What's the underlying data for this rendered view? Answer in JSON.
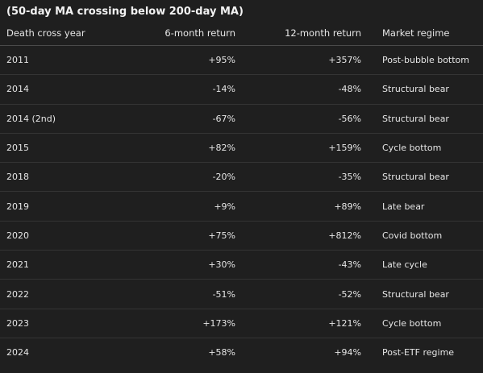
{
  "caption": "(50-day MA crossing below 200-day MA)",
  "table": {
    "headers": {
      "year": "Death cross year",
      "six_month": "6-month return",
      "twelve_month": "12-month return",
      "regime": "Market regime"
    },
    "rows": [
      {
        "year": "2011",
        "six_month": "+95%",
        "twelve_month": "+357%",
        "regime": "Post-bubble bottom"
      },
      {
        "year": "2014",
        "six_month": "-14%",
        "twelve_month": "-48%",
        "regime": "Structural bear"
      },
      {
        "year": "2014 (2nd)",
        "six_month": "-67%",
        "twelve_month": "-56%",
        "regime": "Structural bear"
      },
      {
        "year": "2015",
        "six_month": "+82%",
        "twelve_month": "+159%",
        "regime": "Cycle bottom"
      },
      {
        "year": "2018",
        "six_month": "-20%",
        "twelve_month": "-35%",
        "regime": "Structural bear"
      },
      {
        "year": "2019",
        "six_month": "+9%",
        "twelve_month": "+89%",
        "regime": "Late bear"
      },
      {
        "year": "2020",
        "six_month": "+75%",
        "twelve_month": "+812%",
        "regime": "Covid bottom"
      },
      {
        "year": "2021",
        "six_month": "+30%",
        "twelve_month": "-43%",
        "regime": "Late cycle"
      },
      {
        "year": "2022",
        "six_month": "-51%",
        "twelve_month": "-52%",
        "regime": "Structural bear"
      },
      {
        "year": "2023",
        "six_month": "+173%",
        "twelve_month": "+121%",
        "regime": "Cycle bottom"
      },
      {
        "year": "2024",
        "six_month": "+58%",
        "twelve_month": "+94%",
        "regime": "Post-ETF regime"
      }
    ]
  }
}
